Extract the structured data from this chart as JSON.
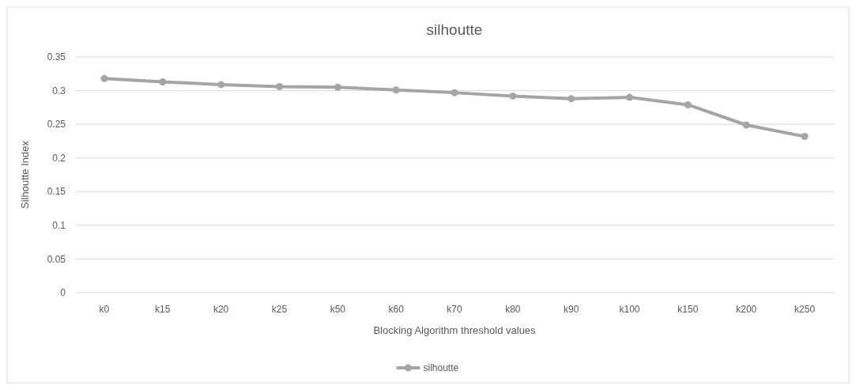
{
  "chart_data": {
    "type": "line",
    "title": "silhoutte",
    "xlabel": "Blocking Algorithm threshold values",
    "ylabel": "Silhoutte Index",
    "categories": [
      "k0",
      "k15",
      "k20",
      "k25",
      "k50",
      "k60",
      "k70",
      "k80",
      "k90",
      "k100",
      "k150",
      "k200",
      "k250"
    ],
    "series": [
      {
        "name": "silhoutte",
        "color": "#a5a5a5",
        "values": [
          0.318,
          0.313,
          0.309,
          0.306,
          0.305,
          0.301,
          0.297,
          0.292,
          0.288,
          0.29,
          0.279,
          0.249,
          0.232
        ]
      }
    ],
    "ylim": [
      0,
      0.35
    ],
    "yticks": [
      0,
      0.05,
      0.1,
      0.15,
      0.2,
      0.25,
      0.3,
      0.35
    ],
    "grid": "y",
    "legend": "bottom",
    "marker": "circle",
    "line_style": "solid"
  }
}
